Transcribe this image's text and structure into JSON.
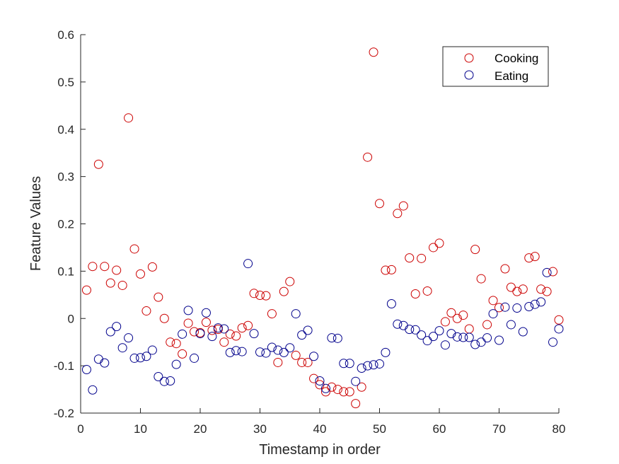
{
  "chart_data": {
    "type": "scatter",
    "title": "",
    "xlabel": "Timestamp in order",
    "ylabel": "Feature Values",
    "xlim": [
      0,
      80
    ],
    "ylim": [
      -0.2,
      0.6
    ],
    "xticks": [
      0,
      10,
      20,
      30,
      40,
      50,
      60,
      70,
      80
    ],
    "xtick_labels": [
      "0",
      "10",
      "20",
      "30",
      "40",
      "50",
      "60",
      "70",
      "80"
    ],
    "yticks": [
      -0.2,
      -0.1,
      0,
      0.1,
      0.2,
      0.3,
      0.4,
      0.5,
      0.6
    ],
    "ytick_labels": [
      "-0.2",
      "-0.1",
      "0",
      "0.1",
      "0.2",
      "0.3",
      "0.4",
      "0.5",
      "0.6"
    ],
    "grid": false,
    "legend_position": "top-right",
    "x": [
      1,
      2,
      3,
      4,
      5,
      6,
      7,
      8,
      9,
      10,
      11,
      12,
      13,
      14,
      15,
      16,
      17,
      18,
      19,
      20,
      21,
      22,
      23,
      24,
      25,
      26,
      27,
      28,
      29,
      30,
      31,
      32,
      33,
      34,
      35,
      36,
      37,
      38,
      39,
      40,
      41,
      42,
      43,
      44,
      45,
      46,
      47,
      48,
      49,
      50,
      51,
      52,
      53,
      54,
      55,
      56,
      57,
      58,
      59,
      60,
      61,
      62,
      63,
      64,
      65,
      66,
      67,
      68,
      69,
      70,
      71,
      72,
      73,
      74,
      75,
      76,
      77,
      78,
      79,
      80
    ],
    "series": [
      {
        "name": "Cooking",
        "color": "#cc0000",
        "marker": "circle-open",
        "values": [
          0.06,
          0.11,
          0.326,
          0.11,
          0.075,
          0.102,
          0.07,
          0.424,
          0.147,
          0.094,
          0.016,
          0.109,
          0.045,
          0.0,
          -0.05,
          -0.053,
          -0.075,
          -0.01,
          -0.028,
          -0.03,
          -0.008,
          -0.025,
          -0.023,
          -0.05,
          -0.033,
          -0.037,
          -0.02,
          -0.015,
          0.053,
          0.049,
          0.048,
          0.01,
          -0.093,
          0.057,
          0.078,
          -0.078,
          -0.093,
          -0.093,
          -0.127,
          -0.14,
          -0.155,
          -0.145,
          -0.15,
          -0.155,
          -0.155,
          -0.18,
          -0.145,
          0.341,
          0.563,
          0.243,
          0.102,
          0.103,
          0.222,
          0.238,
          0.128,
          0.052,
          0.127,
          0.058,
          0.15,
          0.159,
          -0.007,
          0.012,
          0.0,
          0.007,
          -0.022,
          0.146,
          0.084,
          -0.013,
          0.038,
          0.023,
          0.105,
          0.066,
          0.057,
          0.062,
          0.128,
          0.131,
          0.062,
          0.057,
          0.099,
          -0.003
        ]
      },
      {
        "name": "Eating",
        "color": "#00008b",
        "marker": "circle-open",
        "values": [
          -0.108,
          -0.151,
          -0.086,
          -0.094,
          -0.028,
          -0.017,
          -0.062,
          -0.041,
          -0.084,
          -0.083,
          -0.08,
          -0.067,
          -0.123,
          -0.133,
          -0.132,
          -0.097,
          -0.033,
          0.017,
          -0.084,
          -0.032,
          0.012,
          -0.038,
          -0.02,
          -0.022,
          -0.072,
          -0.068,
          -0.07,
          0.116,
          -0.032,
          -0.071,
          -0.073,
          -0.061,
          -0.067,
          -0.072,
          -0.062,
          0.01,
          -0.035,
          -0.025,
          -0.08,
          -0.132,
          -0.148,
          -0.041,
          -0.042,
          -0.095,
          -0.095,
          -0.133,
          -0.105,
          -0.1,
          -0.098,
          -0.096,
          -0.072,
          0.031,
          -0.012,
          -0.015,
          -0.023,
          -0.024,
          -0.035,
          -0.047,
          -0.038,
          -0.026,
          -0.056,
          -0.032,
          -0.039,
          -0.04,
          -0.04,
          -0.055,
          -0.05,
          -0.041,
          0.01,
          -0.046,
          0.024,
          -0.013,
          0.022,
          -0.028,
          0.025,
          0.03,
          0.035,
          0.097,
          -0.05,
          -0.022
        ]
      }
    ]
  }
}
